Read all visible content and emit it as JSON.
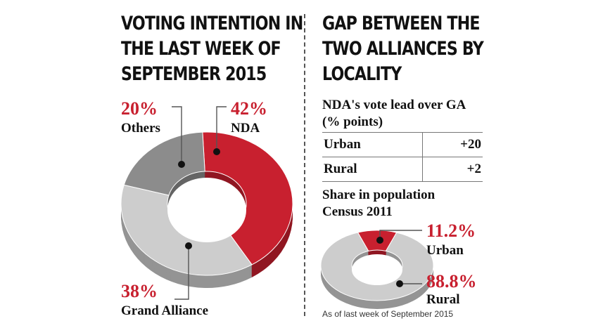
{
  "left": {
    "title_lines": [
      "VOTING INTENTION IN",
      "THE LAST WEEK OF",
      "SEPTEMBER 2015"
    ]
  },
  "right": {
    "title_lines": [
      "GAP BETWEEN THE",
      "TWO ALLIANCES BY",
      "LOCALITY"
    ],
    "lead_title_lines": [
      "NDA's vote lead over GA",
      "(% points)"
    ],
    "population_title_lines": [
      "Share in population",
      "Census 2011"
    ],
    "footnote": "As of last week of September 2015"
  },
  "colors": {
    "red": "#c8202f",
    "dark_gray": "#8c8c8c",
    "light_gray": "#cdcdcd"
  },
  "chart_data": [
    {
      "type": "pie",
      "title": "VOTING INTENTION IN THE LAST WEEK OF SEPTEMBER 2015",
      "slices": [
        {
          "label": "NDA",
          "value": 42,
          "display": "42%"
        },
        {
          "label": "Grand Alliance",
          "value": 38,
          "display": "38%"
        },
        {
          "label": "Others",
          "value": 20,
          "display": "20%"
        }
      ]
    },
    {
      "type": "table",
      "title": "NDA's vote lead over GA (% points)",
      "rows": [
        {
          "label": "Urban",
          "value": 20,
          "display": "+20"
        },
        {
          "label": "Rural",
          "value": 2,
          "display": "+2"
        }
      ]
    },
    {
      "type": "pie",
      "title": "Share in population Census 2011",
      "slices": [
        {
          "label": "Urban",
          "value": 11.2,
          "display": "11.2%"
        },
        {
          "label": "Rural",
          "value": 88.8,
          "display": "88.8%"
        }
      ]
    }
  ]
}
